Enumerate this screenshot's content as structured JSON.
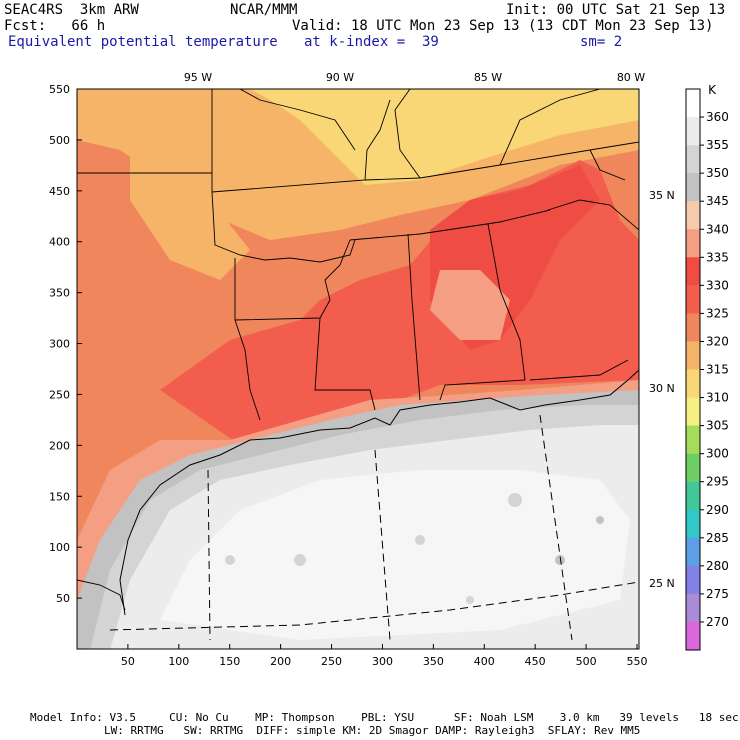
{
  "header": {
    "model": "SEAC4RS  3km ARW",
    "org": "NCAR/MMM",
    "init": "Init: 00 UTC Sat 21 Sep 13",
    "fcst": "Fcst:   66 h",
    "valid": "Valid: 18 UTC Mon 23 Sep 13 (13 CDT Mon 23 Sep 13)",
    "field": "Equivalent potential temperature",
    "level": "at k-index =  39",
    "smooth": "sm= 2"
  },
  "axes": {
    "x_ticks": [
      "50",
      "100",
      "150",
      "200",
      "250",
      "300",
      "350",
      "400",
      "450",
      "500",
      "550"
    ],
    "y_ticks": [
      "550",
      "500",
      "450",
      "400",
      "350",
      "300",
      "250",
      "200",
      "150",
      "100",
      "50"
    ],
    "lon_labels": [
      "95 W",
      "90 W",
      "85 W",
      "80 W"
    ],
    "lat_labels": [
      "35 N",
      "30 N",
      "25 N"
    ]
  },
  "colorbar": {
    "unit": "K",
    "labels": [
      "360",
      "355",
      "350",
      "345",
      "340",
      "335",
      "330",
      "325",
      "320",
      "315",
      "310",
      "305",
      "300",
      "295",
      "290",
      "285",
      "280",
      "275",
      "270"
    ],
    "colors": [
      "#ffffff",
      "#ececec",
      "#d4d4d4",
      "#c2c2c2",
      "#f6cbab",
      "#f49e83",
      "#ef4c44",
      "#f25d4d",
      "#f0875c",
      "#f6b468",
      "#f9d776",
      "#f6ef82",
      "#a7dc58",
      "#6fcf65",
      "#41c89a",
      "#33c8c8",
      "#5c9fe6",
      "#8281e8",
      "#ab8bd8",
      "#dc66dc"
    ]
  },
  "footer": {
    "line1": "Model Info: V3.5     CU: No Cu    MP: Thompson    PBL: YSU      SF: Noah LSM    3.0 km   39 levels   18 sec",
    "line2": "LW: RRTMG   SW: RRTMG  DIFF: simple KM: 2D Smagor DAMP: Rayleigh3  SFLAY: Rev MM5"
  }
}
